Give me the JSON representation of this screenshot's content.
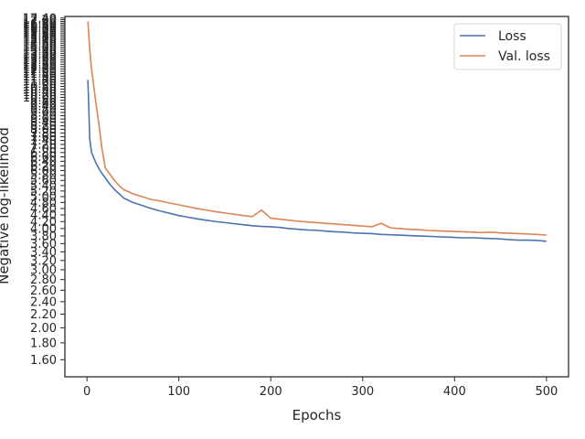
{
  "chart_data": {
    "type": "line",
    "title": "",
    "xlabel": "Epochs",
    "ylabel": "Negative log-likelihood",
    "x_scale": "linear",
    "y_scale": "log",
    "xlim": [
      -24,
      524
    ],
    "ylim": [
      1.42,
      17.6
    ],
    "x_ticks": [
      0,
      100,
      200,
      300,
      400,
      500
    ],
    "x_tick_labels": [
      "0",
      "100",
      "200",
      "300",
      "400",
      "500"
    ],
    "y_ticks": [
      1.6,
      1.8,
      2.0,
      2.2,
      2.4,
      2.6,
      2.8,
      3.0,
      3.2,
      3.4,
      3.6,
      3.8,
      4.0,
      4.2,
      4.4,
      4.6,
      4.8,
      5.0,
      5.2,
      5.4,
      5.6,
      5.8,
      6.0,
      6.2,
      6.4,
      6.6,
      6.8,
      7.0,
      7.2,
      7.4,
      7.6,
      7.8,
      8.0,
      8.2,
      8.4,
      8.6,
      8.8,
      9.0,
      9.2,
      9.4,
      9.6,
      9.8,
      10.0,
      10.2,
      10.4,
      10.6,
      10.8,
      11.0,
      11.2,
      11.4,
      11.6,
      11.8,
      12.0,
      12.2,
      12.4,
      12.6,
      12.8,
      13.0,
      13.2,
      13.4,
      13.6,
      13.8,
      14.0,
      14.2,
      14.4,
      14.6,
      14.8,
      15.0,
      15.2,
      15.4,
      15.6,
      15.8,
      16.0,
      16.2,
      16.4,
      16.6,
      16.8,
      17.0,
      17.2,
      17.4
    ],
    "y_tick_labels": [
      "1.60",
      "1.80",
      "2.00",
      "2.20",
      "2.40",
      "2.60",
      "2.80",
      "3.00",
      "3.20",
      "3.40",
      "3.60",
      "3.80",
      "4.00",
      "4.20",
      "4.40",
      "4.60",
      "4.80",
      "5.00",
      "5.20",
      "5.40",
      "5.60",
      "5.80",
      "6.00",
      "6.20",
      "6.40",
      "6.60",
      "6.80",
      "7.00",
      "7.20",
      "7.40",
      "7.60",
      "7.80",
      "8.00",
      "8.20",
      "8.40",
      "8.60",
      "8.80",
      "9.00",
      "9.20",
      "9.40",
      "9.60",
      "9.80",
      "10.00",
      "10.20",
      "10.40",
      "10.60",
      "10.80",
      "11.00",
      "11.20",
      "11.40",
      "11.60",
      "11.80",
      "12.00",
      "12.20",
      "12.40",
      "12.60",
      "12.80",
      "13.00",
      "13.20",
      "13.40",
      "13.60",
      "13.80",
      "14.00",
      "14.20",
      "14.40",
      "14.60",
      "14.80",
      "15.00",
      "15.20",
      "15.40",
      "15.60",
      "15.80",
      "16.00",
      "16.20",
      "16.40",
      "16.60",
      "16.80",
      "17.00",
      "17.20",
      "17.40"
    ],
    "grid": false,
    "legend_position": "top-right",
    "series": [
      {
        "name": "Loss",
        "color": "#4c72b0",
        "x": [
          1,
          2,
          3,
          5,
          7,
          10,
          15,
          20,
          25,
          30,
          35,
          40,
          50,
          60,
          70,
          80,
          90,
          100,
          110,
          120,
          130,
          140,
          150,
          160,
          170,
          180,
          190,
          200,
          210,
          220,
          230,
          240,
          250,
          260,
          270,
          280,
          290,
          300,
          310,
          320,
          330,
          340,
          350,
          360,
          370,
          380,
          390,
          400,
          410,
          420,
          430,
          440,
          450,
          460,
          470,
          480,
          490,
          500
        ],
        "y": [
          11.3,
          9.3,
          7.5,
          6.8,
          6.6,
          6.3,
          5.95,
          5.7,
          5.45,
          5.25,
          5.1,
          4.95,
          4.8,
          4.7,
          4.6,
          4.52,
          4.45,
          4.38,
          4.33,
          4.28,
          4.24,
          4.2,
          4.17,
          4.14,
          4.11,
          4.08,
          4.06,
          4.05,
          4.03,
          4.0,
          3.98,
          3.96,
          3.95,
          3.93,
          3.91,
          3.9,
          3.88,
          3.87,
          3.86,
          3.84,
          3.83,
          3.82,
          3.81,
          3.8,
          3.79,
          3.78,
          3.77,
          3.76,
          3.75,
          3.75,
          3.74,
          3.73,
          3.72,
          3.7,
          3.69,
          3.69,
          3.68,
          3.66
        ]
      },
      {
        "name": "Val. loss",
        "color": "#dd8452",
        "x": [
          1,
          2,
          3,
          5,
          8,
          10,
          13,
          16,
          20,
          25,
          30,
          35,
          40,
          50,
          60,
          70,
          80,
          90,
          100,
          110,
          120,
          130,
          140,
          150,
          160,
          170,
          180,
          190,
          200,
          210,
          220,
          230,
          240,
          250,
          260,
          270,
          280,
          290,
          300,
          310,
          320,
          330,
          340,
          350,
          360,
          370,
          380,
          390,
          400,
          410,
          420,
          430,
          440,
          450,
          460,
          470,
          480,
          490,
          500
        ],
        "y": [
          17.0,
          15.5,
          14.0,
          12.2,
          10.5,
          9.5,
          8.3,
          7.1,
          6.1,
          5.85,
          5.6,
          5.4,
          5.25,
          5.1,
          5.0,
          4.9,
          4.85,
          4.78,
          4.72,
          4.66,
          4.6,
          4.55,
          4.5,
          4.46,
          4.42,
          4.38,
          4.35,
          4.55,
          4.3,
          4.27,
          4.24,
          4.21,
          4.19,
          4.17,
          4.15,
          4.13,
          4.11,
          4.09,
          4.07,
          4.05,
          4.15,
          4.02,
          4.0,
          3.98,
          3.97,
          3.95,
          3.94,
          3.93,
          3.92,
          3.91,
          3.9,
          3.89,
          3.9,
          3.88,
          3.87,
          3.86,
          3.85,
          3.84,
          3.82
        ]
      }
    ]
  }
}
